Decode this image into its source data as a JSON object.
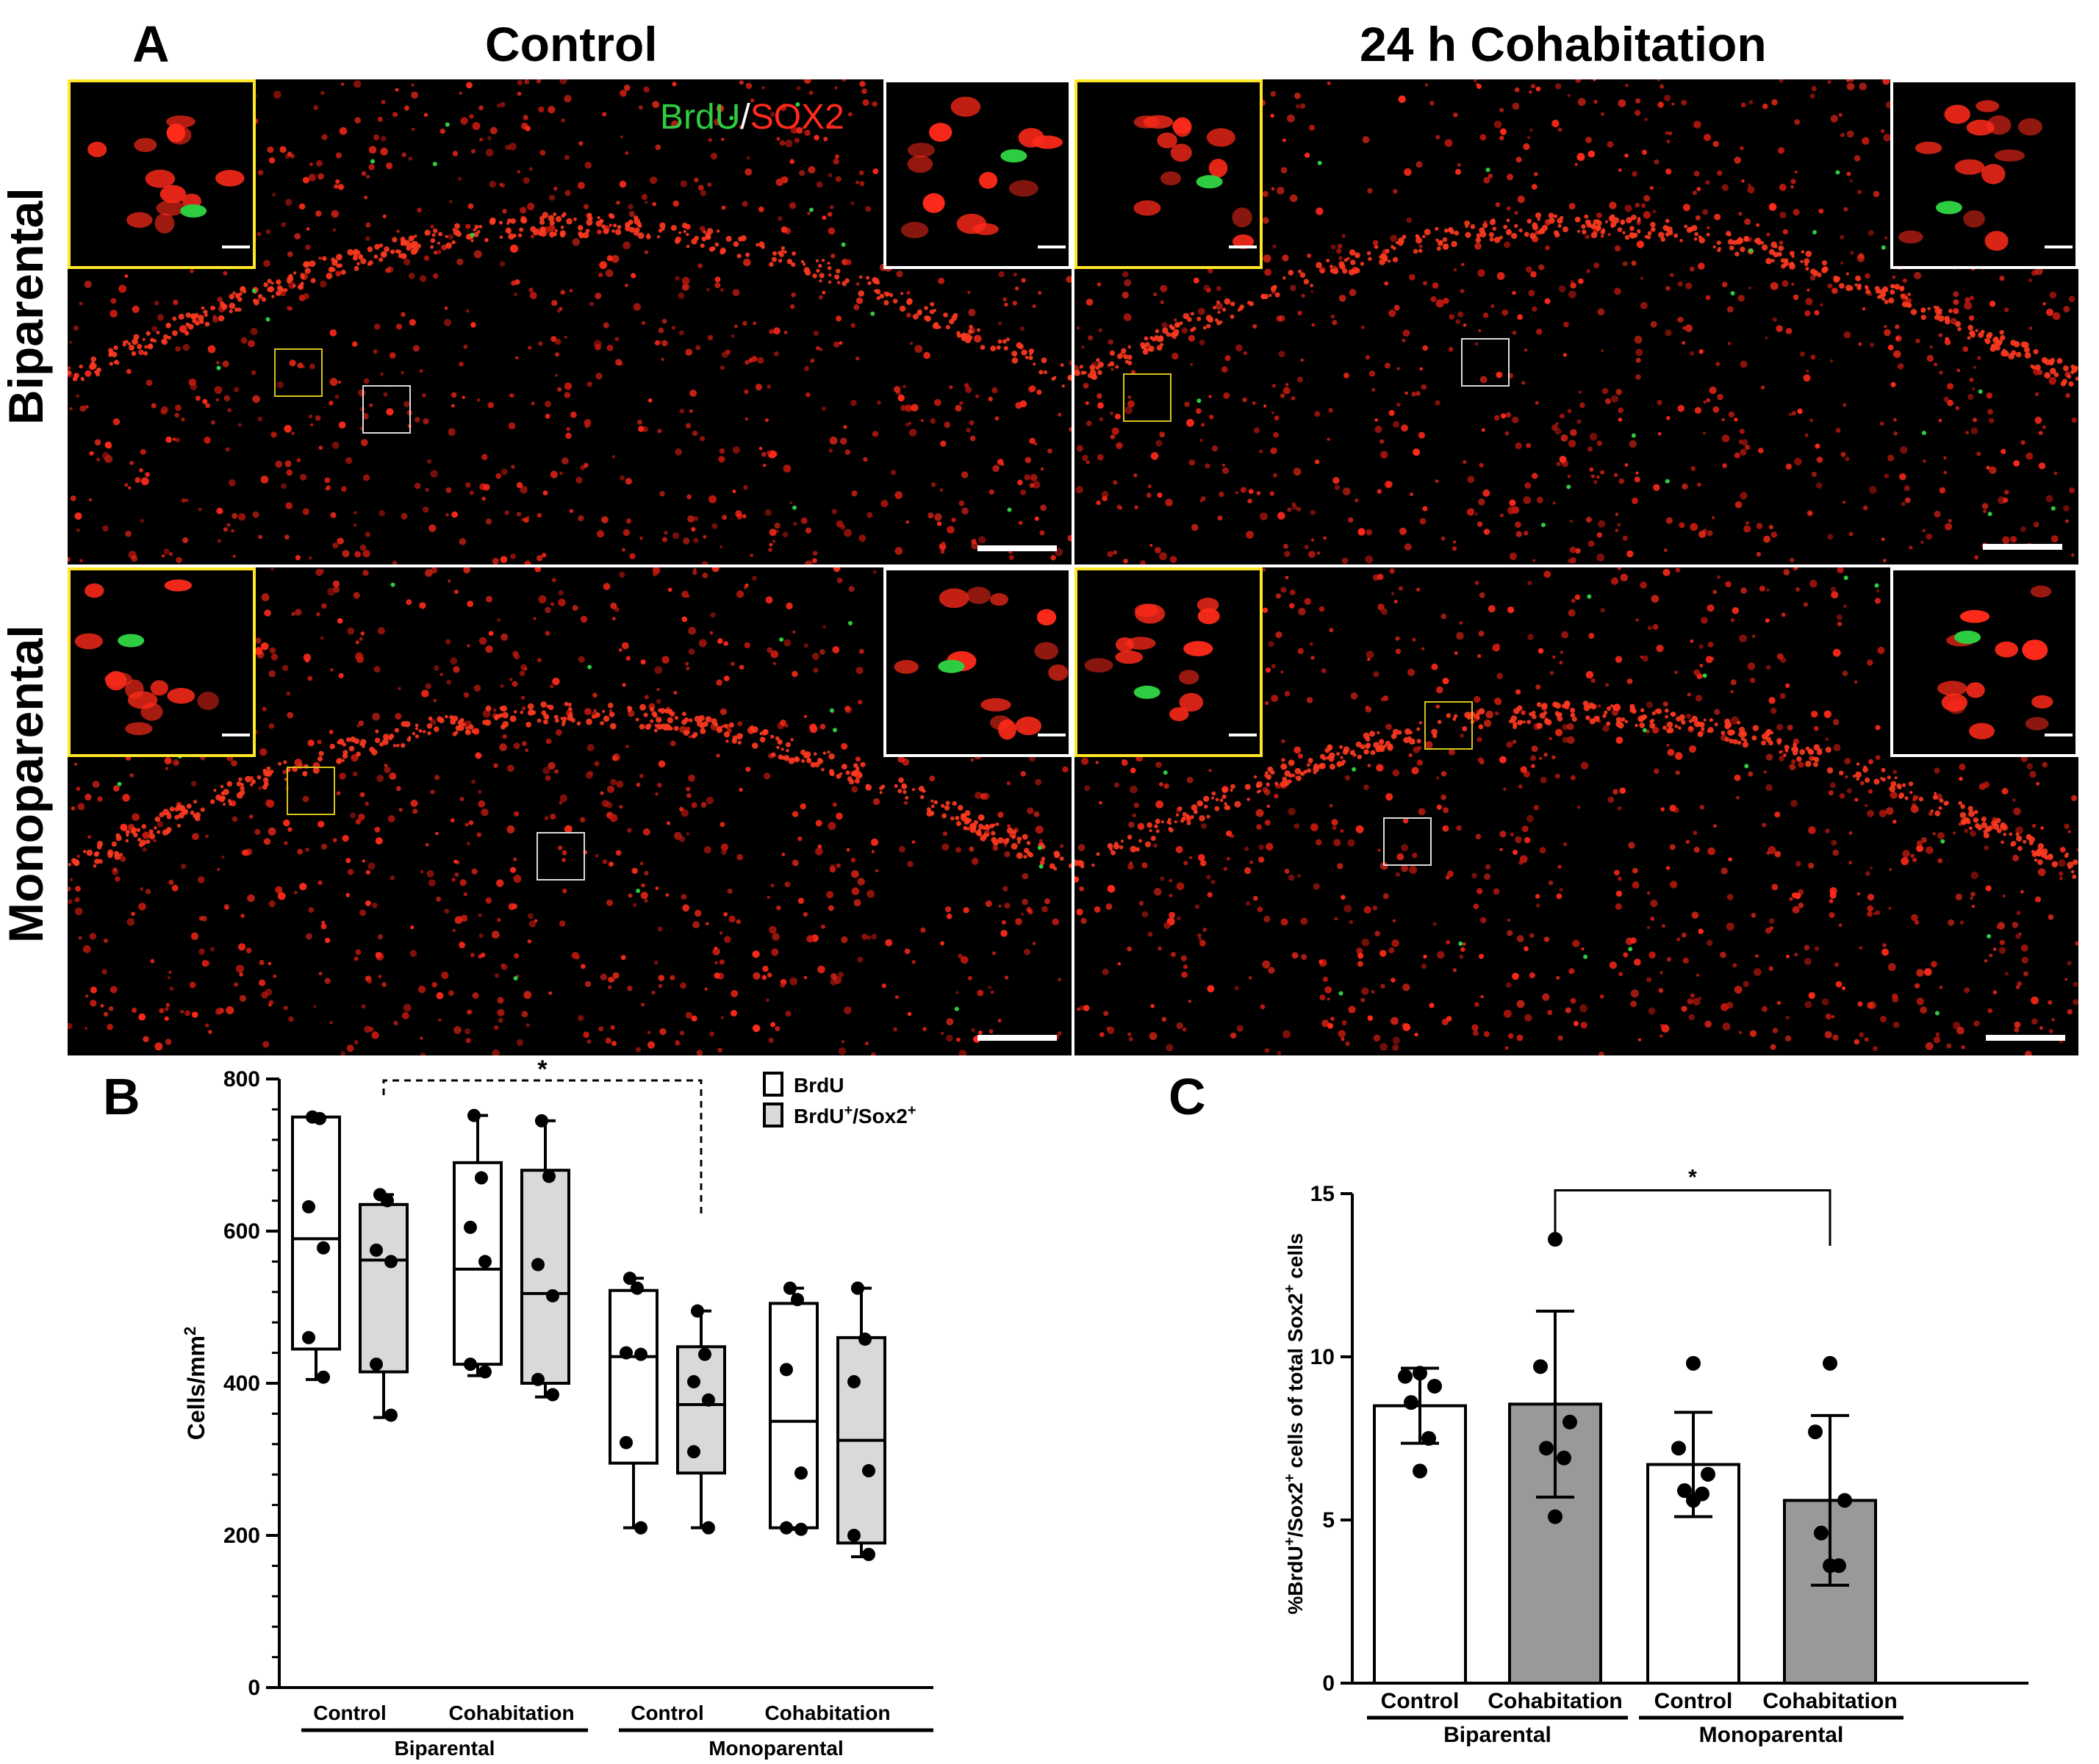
{
  "figure": {
    "panel_a": {
      "letter": "A",
      "col_titles": [
        "Control",
        "24 h Cohabitation"
      ],
      "row_titles": [
        "Biparental",
        "Monoparental"
      ],
      "stain_legend": {
        "marker1": "BrdU",
        "separator": "/",
        "marker2": "SOX2",
        "marker1_color": "#2ecc40",
        "marker2_color": "#ff2a1a"
      }
    },
    "panel_b": {
      "letter": "B"
    },
    "panel_c": {
      "letter": "C"
    }
  },
  "chart_data": [
    {
      "id": "B",
      "type": "box",
      "ylabel": "Cells/mm2",
      "ylim": [
        0,
        800
      ],
      "yticks": [
        0,
        200,
        400,
        600,
        800
      ],
      "groups": [
        {
          "name": "Biparental",
          "categories": [
            "Control",
            "Cohabitation"
          ]
        },
        {
          "name": "Monoparental",
          "categories": [
            "Control",
            "Cohabitation"
          ]
        }
      ],
      "legend": [
        {
          "label": "BrdU",
          "fill": "#ffffff"
        },
        {
          "label": "BrdU+/Sox2+",
          "fill": "#d9d9d9"
        }
      ],
      "series": [
        {
          "name": "BrdU",
          "fill": "#ffffff",
          "boxes": [
            {
              "group": "Biparental",
              "category": "Control",
              "min": 405,
              "q1": 445,
              "median": 590,
              "q3": 750,
              "max": 750,
              "points": [
                750,
                748,
                632,
                578,
                460,
                408
              ]
            },
            {
              "group": "Biparental",
              "category": "Cohabitation",
              "min": 410,
              "q1": 425,
              "median": 550,
              "q3": 690,
              "max": 752,
              "points": [
                752,
                670,
                605,
                560,
                425,
                415
              ]
            },
            {
              "group": "Monoparental",
              "category": "Control",
              "min": 210,
              "q1": 295,
              "median": 435,
              "q3": 522,
              "max": 538,
              "points": [
                538,
                525,
                440,
                438,
                322,
                210
              ]
            },
            {
              "group": "Monoparental",
              "category": "Cohabitation",
              "min": 208,
              "q1": 210,
              "median": 350,
              "q3": 505,
              "max": 525,
              "points": [
                525,
                510,
                418,
                282,
                210,
                208
              ]
            }
          ]
        },
        {
          "name": "BrdU+/Sox2+",
          "fill": "#d9d9d9",
          "boxes": [
            {
              "group": "Biparental",
              "category": "Control",
              "min": 355,
              "q1": 415,
              "median": 562,
              "q3": 635,
              "max": 648,
              "points": [
                648,
                640,
                575,
                560,
                425,
                358
              ]
            },
            {
              "group": "Biparental",
              "category": "Cohabitation",
              "min": 382,
              "q1": 400,
              "median": 518,
              "q3": 680,
              "max": 745,
              "points": [
                745,
                672,
                556,
                515,
                405,
                385
              ]
            },
            {
              "group": "Monoparental",
              "category": "Control",
              "min": 210,
              "q1": 282,
              "median": 372,
              "q3": 448,
              "max": 495,
              "points": [
                495,
                438,
                402,
                378,
                310,
                210
              ]
            },
            {
              "group": "Monoparental",
              "category": "Cohabitation",
              "min": 172,
              "q1": 190,
              "median": 325,
              "q3": 460,
              "max": 525,
              "points": [
                525,
                458,
                402,
                285,
                200,
                175
              ]
            }
          ]
        }
      ],
      "annotation": {
        "text": "*",
        "from": "Biparental Control BrdU+/Sox2+",
        "to": "Monoparental Control BrdU+/Sox2+",
        "style": "dashed"
      }
    },
    {
      "id": "C",
      "type": "bar",
      "ylabel": "%BrdU+/Sox2+ cells of total Sox2+ cells",
      "ylim": [
        0,
        15
      ],
      "yticks": [
        0,
        5,
        10,
        15
      ],
      "groups": [
        {
          "name": "Biparental",
          "categories": [
            "Control",
            "Cohabitation"
          ]
        },
        {
          "name": "Monoparental",
          "categories": [
            "Control",
            "Cohabitation"
          ]
        }
      ],
      "bars": [
        {
          "group": "Biparental",
          "category": "Control",
          "mean": 8.5,
          "sd": 1.15,
          "fill": "#ffffff",
          "points": [
            9.5,
            9.4,
            9.1,
            8.6,
            7.5,
            6.5
          ]
        },
        {
          "group": "Biparental",
          "category": "Cohabitation",
          "mean": 8.55,
          "sd": 2.85,
          "fill": "#999999",
          "points": [
            13.6,
            9.7,
            8.0,
            7.2,
            6.9,
            5.1
          ]
        },
        {
          "group": "Monoparental",
          "category": "Control",
          "mean": 6.7,
          "sd": 1.6,
          "fill": "#ffffff",
          "points": [
            9.8,
            7.2,
            6.4,
            5.9,
            5.8,
            5.6
          ]
        },
        {
          "group": "Monoparental",
          "category": "Cohabitation",
          "mean": 5.6,
          "sd": 2.6,
          "fill": "#999999",
          "points": [
            9.8,
            7.7,
            5.6,
            4.6,
            3.6,
            3.6
          ]
        }
      ],
      "annotation": {
        "text": "*",
        "from": "Biparental Cohabitation",
        "to": "Monoparental Cohabitation",
        "style": "solid"
      }
    }
  ]
}
